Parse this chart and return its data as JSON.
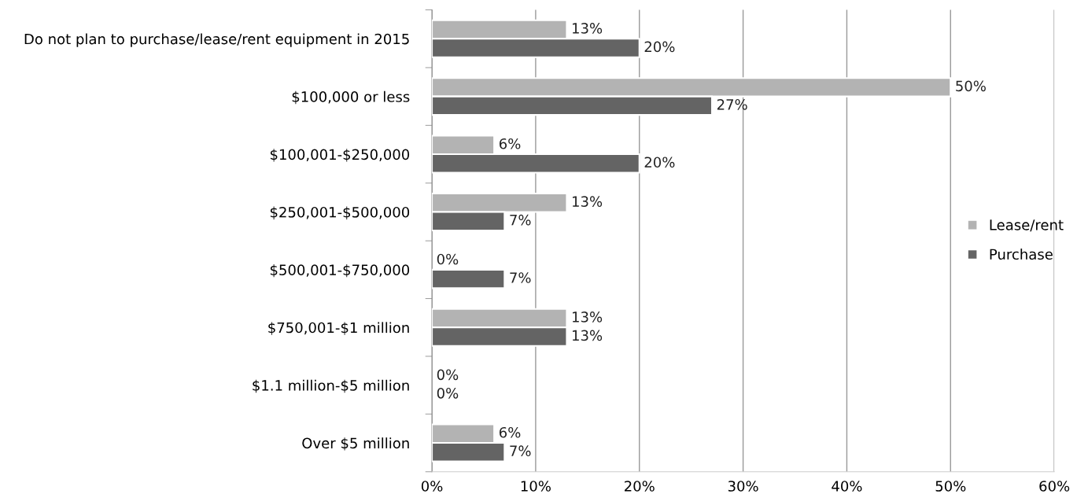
{
  "chart_data": {
    "type": "bar",
    "orientation": "horizontal",
    "categories": [
      "Do not plan to purchase/lease/rent equipment in 2015",
      "$100,000 or less",
      "$100,001-$250,000",
      "$250,001-$500,000",
      "$500,001-$750,000",
      "$750,001-$1 million",
      "$1.1 million-$5 million",
      "Over $5 million"
    ],
    "series": [
      {
        "name": "Lease/rent",
        "color": "#b3b3b3",
        "values": [
          13,
          50,
          6,
          13,
          0,
          13,
          0,
          6
        ],
        "value_labels": [
          "13%",
          "50%",
          "6%",
          "13%",
          "0%",
          "13%",
          "0%",
          "6%"
        ]
      },
      {
        "name": "Purchase",
        "color": "#646464",
        "values": [
          20,
          27,
          20,
          7,
          7,
          13,
          0,
          7
        ],
        "value_labels": [
          "20%",
          "27%",
          "20%",
          "7%",
          "7%",
          "13%",
          "0%",
          "7%"
        ]
      }
    ],
    "xlim": [
      0,
      60
    ],
    "xticks": [
      {
        "value": 0,
        "label": "0%"
      },
      {
        "value": 10,
        "label": "10%"
      },
      {
        "value": 20,
        "label": "20%"
      },
      {
        "value": 30,
        "label": "30%"
      },
      {
        "value": 40,
        "label": "40%"
      },
      {
        "value": 50,
        "label": "50%"
      },
      {
        "value": 60,
        "label": "60%"
      }
    ],
    "grid": "x",
    "legend": "right"
  }
}
